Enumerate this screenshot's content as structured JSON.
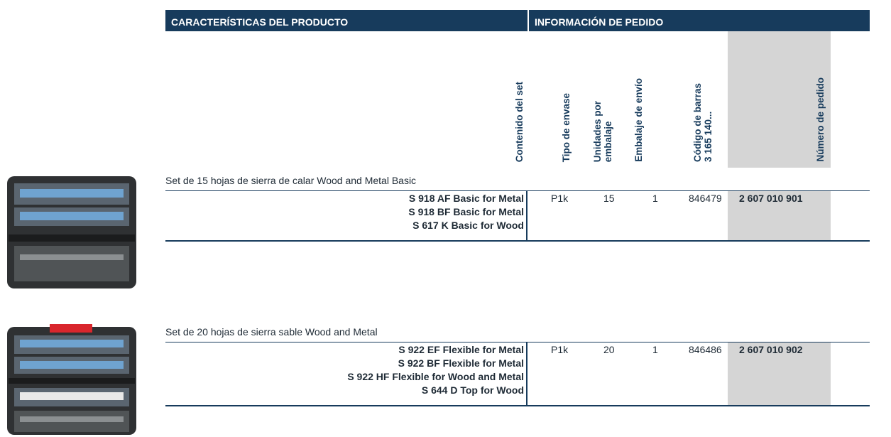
{
  "header": {
    "left": "CARACTERÍSTICAS DEL PRODUCTO",
    "right": "INFORMACIÓN DE PEDIDO"
  },
  "columns": [
    {
      "lines": [
        "Contenido del set"
      ]
    },
    {
      "lines": [
        "Tipo de envase"
      ]
    },
    {
      "lines": [
        "Unidades por",
        "embalaje"
      ]
    },
    {
      "lines": [
        "Embalaje de envío"
      ]
    },
    {
      "lines": [
        "Código de barras",
        "3 165 140..."
      ]
    },
    {
      "lines": [
        "Número de pedido"
      ]
    }
  ],
  "sets": [
    {
      "title": "Set de 15 hojas de sierra de calar Wood and Metal Basic",
      "contents": [
        "S 918 AF Basic for Metal",
        "S 918 BF Basic for Metal",
        "S 617 K Basic for Wood"
      ],
      "packaging": "P1k",
      "units": 15,
      "shipping": 1,
      "barcode": "846479",
      "order_number": "2 607 010 901"
    },
    {
      "title": "Set de 20 hojas de sierra sable Wood and Metal",
      "contents": [
        "S 922 EF Flexible for Metal",
        "S 922 BF Flexible for Metal",
        "S 922 HF Flexible for Wood and Metal",
        "S 644 D Top for Wood"
      ],
      "packaging": "P1k",
      "units": 20,
      "shipping": 1,
      "barcode": "846486",
      "order_number": "2 607 010 902"
    }
  ]
}
